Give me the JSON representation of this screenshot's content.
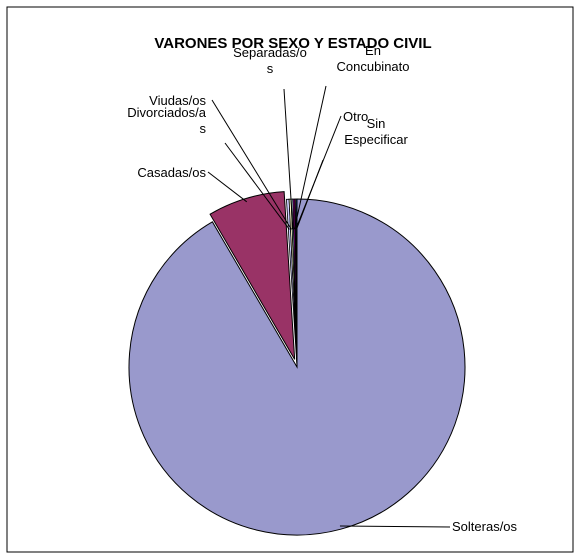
{
  "chart_data": {
    "type": "pie",
    "title": "VARONES POR SEXO Y ESTADO CIVIL",
    "slices": [
      {
        "label": [
          "Solteras/os"
        ],
        "value": 91.6,
        "color": "#9999cc",
        "exploded": false
      },
      {
        "label": [
          "Casadas/os"
        ],
        "value": 7.4,
        "color": "#993366",
        "exploded": true
      },
      {
        "label": [
          "Divorciados/a",
          "s"
        ],
        "value": 0.25,
        "color": "#ccccff",
        "exploded": false
      },
      {
        "label": [
          "Viudas/os"
        ],
        "value": 0.2,
        "color": "#ffffcc",
        "exploded": false
      },
      {
        "label": [
          "Separadas/o",
          "s"
        ],
        "value": 0.15,
        "color": "#ccffff",
        "exploded": false
      },
      {
        "label": [
          "En",
          "Concubinato"
        ],
        "value": 0.2,
        "color": "#660066",
        "exploded": false
      },
      {
        "label": [
          "Otro"
        ],
        "value": 0.1,
        "color": "#ff8080",
        "exploded": false
      },
      {
        "label": [
          "Sin",
          "Especificar"
        ],
        "value": 0.1,
        "color": "#0066cc",
        "exploded": false
      }
    ]
  }
}
